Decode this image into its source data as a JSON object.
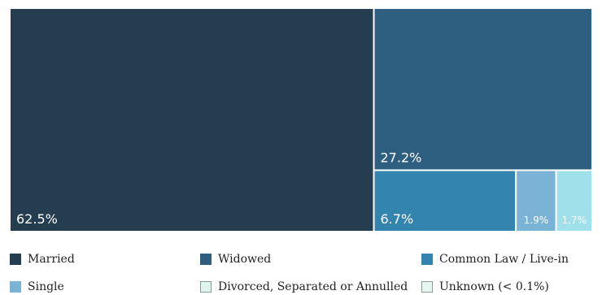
{
  "chart_data": {
    "type": "treemap",
    "title": "",
    "items": [
      {
        "name": "Married",
        "value": 62.5,
        "label": "62.5%",
        "color": "#243d4f"
      },
      {
        "name": "Widowed",
        "value": 27.2,
        "label": "27.2%",
        "color": "#2f5f80"
      },
      {
        "name": "Common Law / Live-in",
        "value": 6.7,
        "label": "6.7%",
        "color": "#3384ae"
      },
      {
        "name": "Single",
        "value": 1.9,
        "label": "1.9%",
        "color": "#7bb3d6"
      },
      {
        "name": "Divorced, Separated or Annulled",
        "value": 1.7,
        "label": "1.7%",
        "color": "#9fe0ea"
      },
      {
        "name": "Unknown (< 0.1%)",
        "value": 0.0,
        "label": "",
        "color": "#e0f3ef"
      }
    ],
    "legend": [
      {
        "label": "Married",
        "color": "#243d4f"
      },
      {
        "label": "Widowed",
        "color": "#2f5f80"
      },
      {
        "label": "Common Law / Live-in",
        "color": "#3384ae"
      },
      {
        "label": "Single",
        "color": "#7bb3d6"
      },
      {
        "label": "Divorced, Separated or Annulled",
        "color": "#e0f3ef"
      },
      {
        "label": "Unknown (< 0.1%)",
        "color": "#e8f6ef"
      }
    ]
  }
}
